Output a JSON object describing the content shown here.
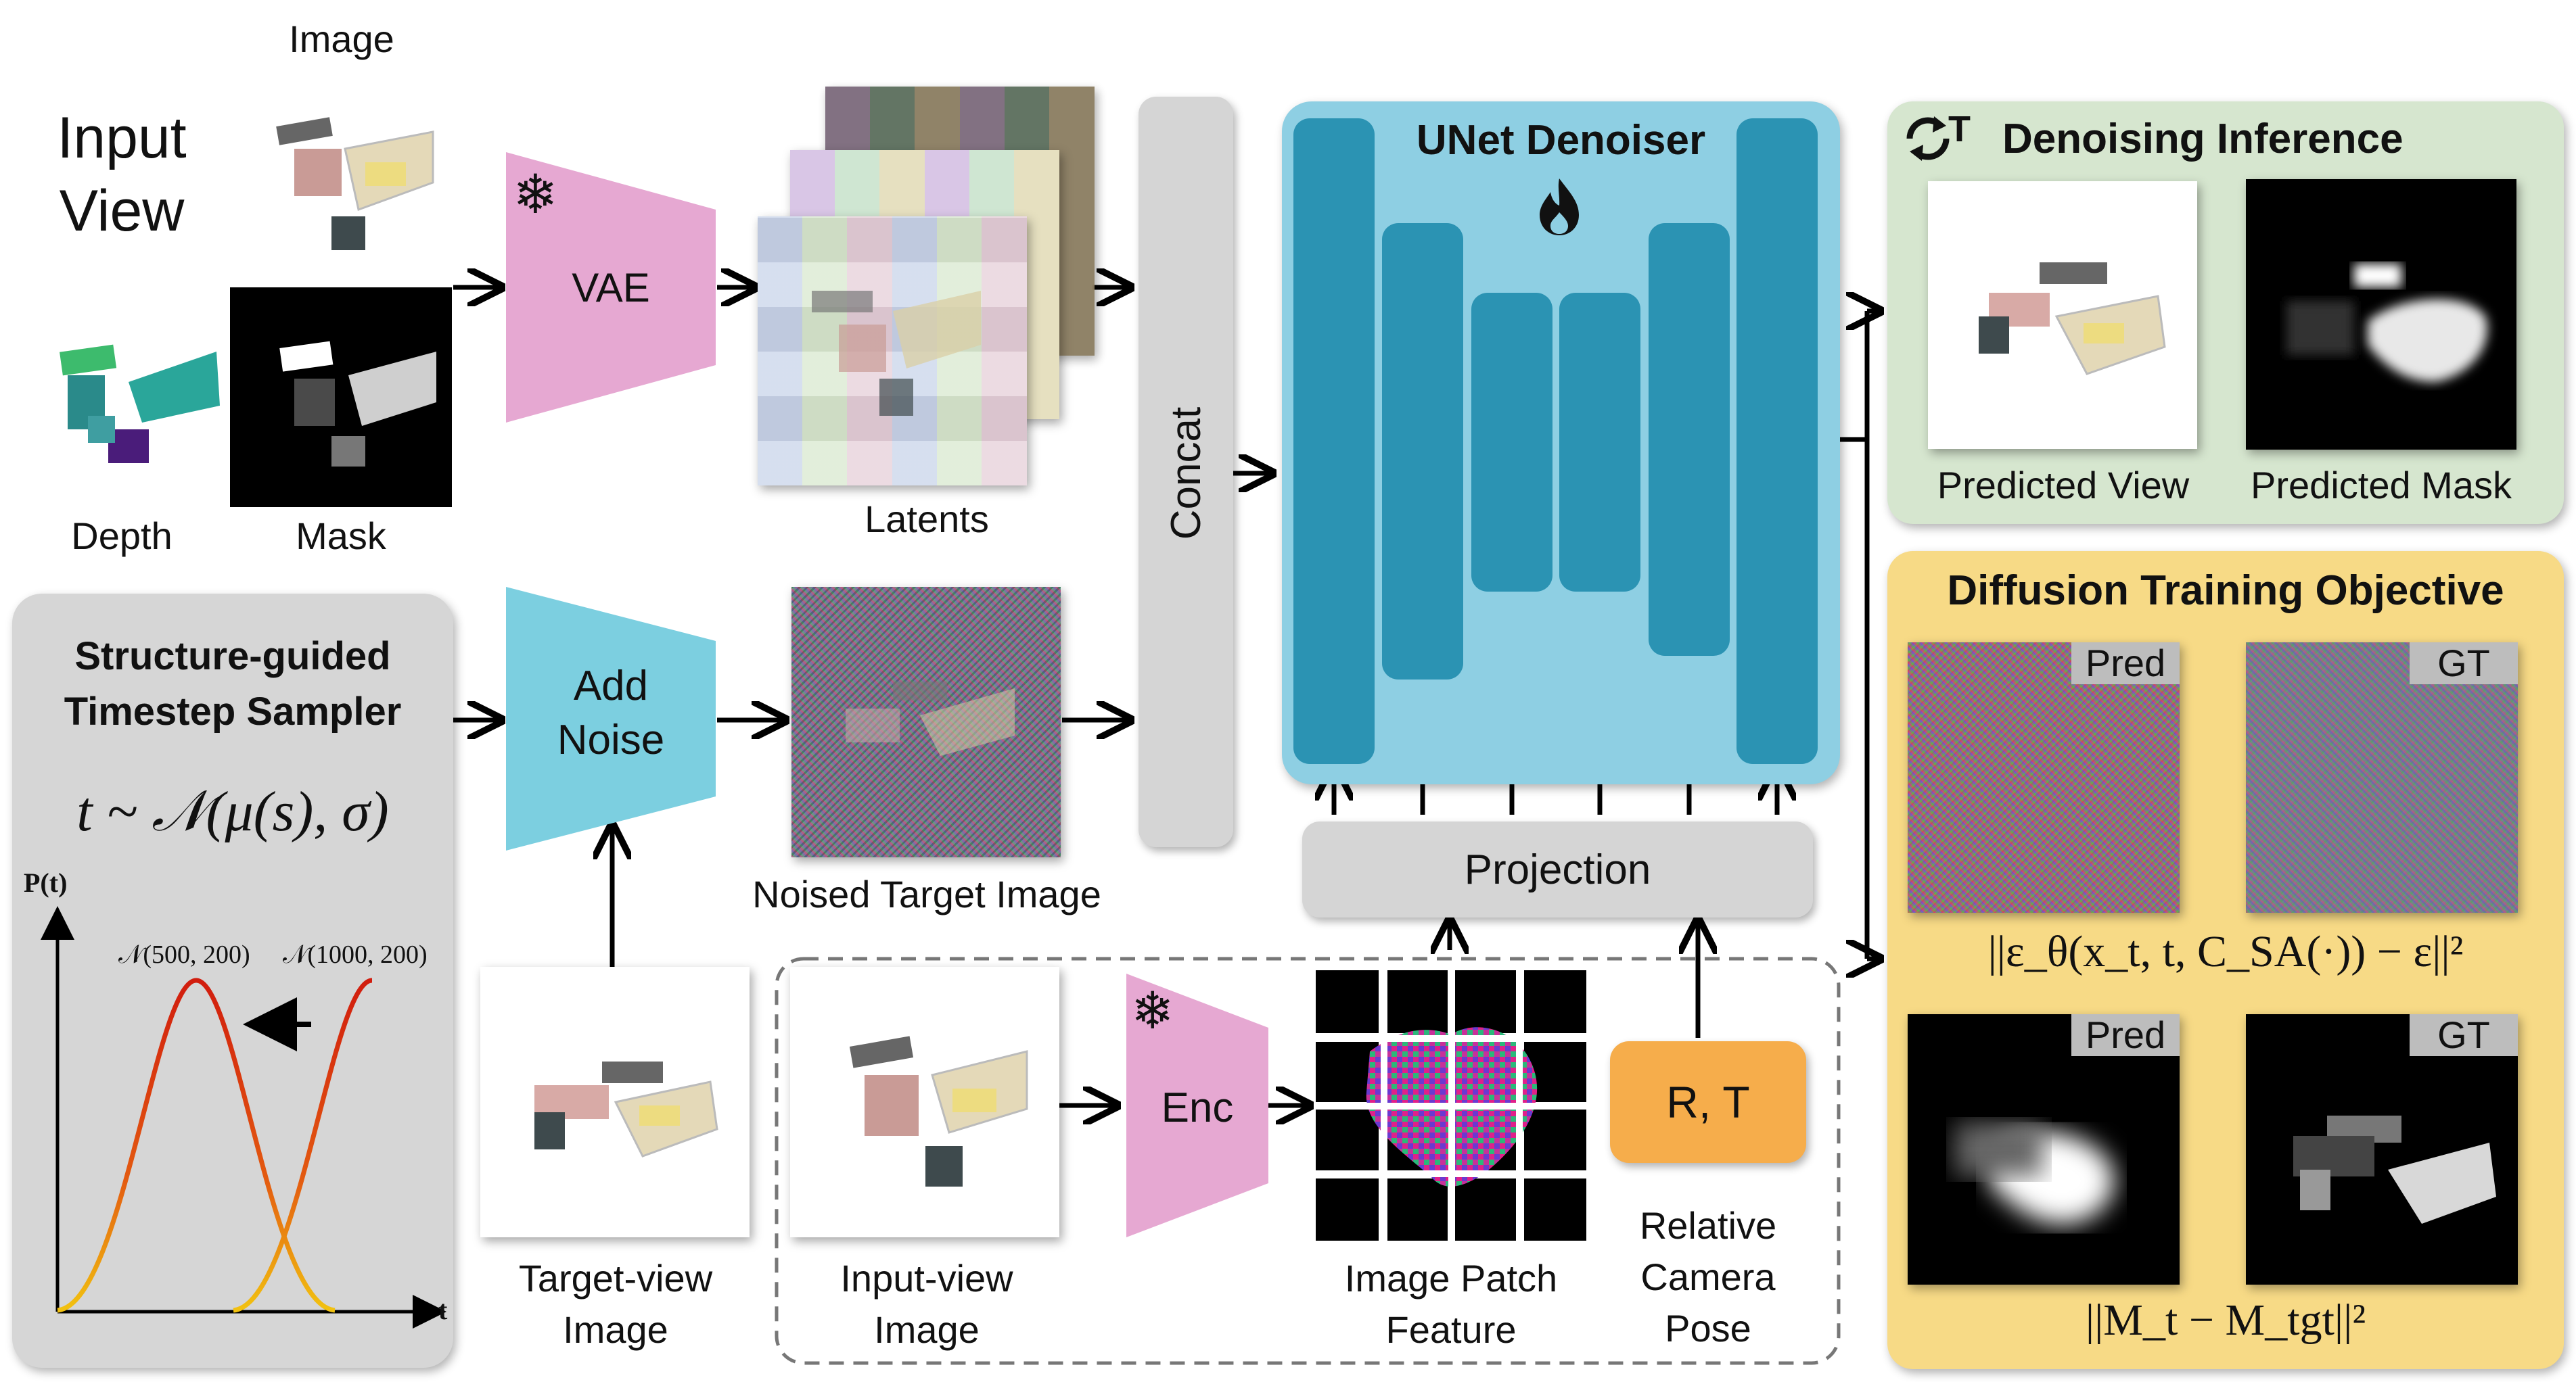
{
  "input_view": {
    "title_line1": "Input",
    "title_line2": "View",
    "image_label": "Image",
    "depth_label": "Depth",
    "mask_label": "Mask"
  },
  "vae_label": "VAE",
  "latents_label": "Latents",
  "concat_label": "Concat",
  "add_noise_line1": "Add",
  "add_noise_line2": "Noise",
  "noised_target_label": "Noised Target Image",
  "unet": {
    "title": "UNet Denoiser"
  },
  "projection_label": "Projection",
  "enc_label": "Enc",
  "rt_label": "R, T",
  "patch_feature_line1": "Image Patch",
  "patch_feature_line2": "Feature",
  "camera_pose_line1": "Relative",
  "camera_pose_line2": "Camera",
  "camera_pose_line3": "Pose",
  "input_view_image_line1": "Input-view",
  "input_view_image_line2": "Image",
  "target_view_image_line1": "Target-view",
  "target_view_image_line2": "Image",
  "sampler": {
    "title_line1": "Structure-guided",
    "title_line2": "Timestep Sampler",
    "formula": "t ~ 𝒩(μ(s), σ)",
    "y_axis_label": "P(t)",
    "x_axis_label": "t",
    "curve1_label": "𝒩(500, 200)",
    "curve2_label": "𝒩(1000, 200)"
  },
  "inference": {
    "iter_symbol": "T",
    "title": "Denoising Inference",
    "predicted_view": "Predicted View",
    "predicted_mask": "Predicted Mask"
  },
  "training": {
    "title": "Diffusion Training Objective",
    "pred_tag_1": "Pred",
    "gt_tag_1": "GT",
    "pred_tag_2": "Pred",
    "gt_tag_2": "GT",
    "noise_loss": "||ε_θ(x_t, t, C_SA(·)) − ε||²",
    "mask_loss": "||M_t − M_tgt||²"
  },
  "colors": {
    "vae_pink": "#e6a8d2",
    "add_noise_blue": "#7ccfe0",
    "unet_bg": "#8ecfe3",
    "unet_block": "#2b93b3",
    "inference_bg": "#d6e6cf",
    "training_bg": "#f7da86",
    "sampler_bg": "#d6d6d6",
    "rt_orange": "#f6ad4b",
    "curve_red": "#d11d0e",
    "curve_yellow": "#f2c210"
  }
}
